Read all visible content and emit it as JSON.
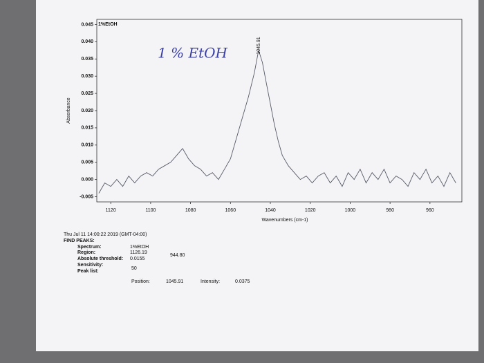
{
  "chart_data": {
    "type": "line",
    "title": "1%EtOH",
    "peak_label": "1045.91",
    "handwritten_note": "1 % EtOH",
    "x_label": "Wavenumbers (cm-1)",
    "y_label": "Absorbance",
    "x": [
      1126,
      1123,
      1120,
      1117,
      1114,
      1111,
      1108,
      1105,
      1102,
      1099,
      1096,
      1093,
      1090,
      1087,
      1084,
      1081,
      1078,
      1075,
      1072,
      1069,
      1066,
      1063,
      1060,
      1057,
      1054,
      1051,
      1048,
      1045.91,
      1044,
      1042,
      1040,
      1038,
      1036,
      1034,
      1031,
      1028,
      1025,
      1022,
      1019,
      1016,
      1013,
      1010,
      1007,
      1004,
      1001,
      998,
      995,
      992,
      989,
      986,
      983,
      980,
      977,
      974,
      971,
      968,
      965,
      962,
      959,
      956,
      953,
      950,
      947
    ],
    "series": [
      {
        "name": "1%EtOH",
        "color": "#555a66",
        "values": [
          -0.004,
          -0.001,
          -0.002,
          0.0,
          -0.002,
          0.001,
          -0.001,
          0.001,
          0.002,
          0.001,
          0.003,
          0.004,
          0.005,
          0.007,
          0.009,
          0.006,
          0.004,
          0.003,
          0.001,
          0.002,
          0.0,
          0.003,
          0.006,
          0.012,
          0.018,
          0.024,
          0.031,
          0.0375,
          0.034,
          0.028,
          0.022,
          0.016,
          0.011,
          0.007,
          0.004,
          0.002,
          0.0,
          0.001,
          -0.001,
          0.001,
          0.002,
          -0.001,
          0.001,
          -0.002,
          0.002,
          0.0,
          0.003,
          -0.001,
          0.002,
          0.0,
          0.003,
          -0.001,
          0.001,
          0.0,
          -0.002,
          0.002,
          0.0,
          0.003,
          -0.001,
          0.001,
          -0.002,
          0.002,
          -0.001
        ]
      }
    ],
    "xlim": [
      1127,
      944
    ],
    "xticks": [
      1120,
      1100,
      1080,
      1060,
      1040,
      1020,
      1000,
      980,
      960
    ],
    "ylim": [
      -0.0065,
      0.0465
    ],
    "yticks": [
      0.045,
      {
        "value": 0.04,
        "label": "0.040"
      },
      0.035,
      {
        "value": 0.03,
        "label": "0.030"
      },
      0.025,
      {
        "value": 0.02,
        "label": "0.020"
      },
      0.015,
      {
        "value": 0.01,
        "label": "0.010"
      },
      0.005,
      {
        "value": 0,
        "label": "0.000"
      },
      -0.005
    ],
    "grid": false
  },
  "report": {
    "timestamp": "Thu Jul 11 14:00:22 2019 (GMT-04:00)",
    "heading": "FIND PEAKS:",
    "spectrum_label": "Spectrum:",
    "spectrum": "1%EtOH",
    "region_label": "Region:",
    "region_start": "1126.19",
    "region_end": "944.80",
    "threshold_label": "Absolute threshold:",
    "threshold": "0.0155",
    "sensitivity_label": "Sensitivity:",
    "sensitivity": "50",
    "peak_list_label": "Peak list:",
    "position_label": "Position:",
    "position": "1045.91",
    "intensity_label": "Intensity:",
    "intensity": "0.0375"
  }
}
